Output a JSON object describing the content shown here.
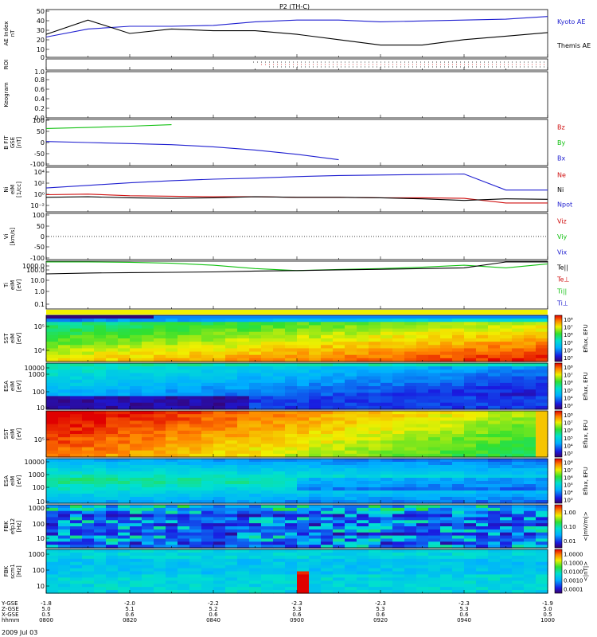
{
  "title": "P2 (TH-C)",
  "date_label": "2009 Jul 03",
  "colors": {
    "blue": "#1f1fd0",
    "red": "#d01010",
    "green": "#10c010",
    "black": "#000000"
  },
  "panels": [
    {
      "id": "ae",
      "ylabel": [
        "AE Index",
        "nT"
      ],
      "ticks": [
        "0",
        "10",
        "20",
        "30",
        "40",
        "50"
      ],
      "legend": [
        {
          "text": "Kyoto AE",
          "color": "#1f1fd0"
        },
        {
          "text": "Themis AE",
          "color": "#000000"
        }
      ]
    },
    {
      "id": "roi",
      "ylabel": [
        "ROI"
      ],
      "ticks": [],
      "legend": []
    },
    {
      "id": "keo",
      "ylabel": [
        "Keogram"
      ],
      "ticks": [
        "0.0",
        "0.2",
        "0.4",
        "0.6",
        "0.8",
        "1.0"
      ],
      "legend": []
    },
    {
      "id": "bfit",
      "ylabel": [
        "B FIT",
        "GSE",
        "[nT]"
      ],
      "ticks": [
        "-100",
        "-50",
        "0",
        "50",
        "100"
      ],
      "legend": [
        {
          "text": "Bz",
          "color": "#d01010"
        },
        {
          "text": "By",
          "color": "#10c010"
        },
        {
          "text": "Bx",
          "color": "#1f1fd0"
        }
      ]
    },
    {
      "id": "ni",
      "ylabel": [
        "Ni",
        "eiM",
        "[1/cc]"
      ],
      "ticks": [
        "10⁻²",
        "10⁰",
        "10²",
        "10⁴"
      ],
      "legend": [
        {
          "text": "Ne",
          "color": "#d01010"
        },
        {
          "text": "Ni",
          "color": "#000000"
        },
        {
          "text": "Npot",
          "color": "#1f1fd0"
        }
      ]
    },
    {
      "id": "vi",
      "ylabel": [
        "Vi",
        "[km/s]"
      ],
      "ticks": [
        "-100",
        "-50",
        "0",
        "50",
        "100"
      ],
      "legend": [
        {
          "text": "Viz",
          "color": "#d01010"
        },
        {
          "text": "Viy",
          "color": "#10c010"
        },
        {
          "text": "Vix",
          "color": "#1f1fd0"
        }
      ]
    },
    {
      "id": "ti",
      "ylabel": [
        "Ti",
        "eiM",
        "[eV]"
      ],
      "ticks": [
        "0.1",
        "1.0",
        "10.0",
        "100.0",
        "1000.0"
      ],
      "legend": [
        {
          "text": "Te||",
          "color": "#000000"
        },
        {
          "text": "Te⊥",
          "color": "#d01010"
        },
        {
          "text": "Ti||",
          "color": "#10c010"
        },
        {
          "text": "Ti⊥",
          "color": "#1f1fd0"
        }
      ]
    },
    {
      "id": "sst_e",
      "ylabel": [
        "SST",
        "eiM",
        "[eV]"
      ],
      "ticks": [
        "10⁴",
        "10⁵"
      ],
      "cbar": [
        "10³",
        "10⁴",
        "10⁵",
        "10⁶",
        "10⁷",
        "10⁸"
      ],
      "cblabel": "Eflux, EFU"
    },
    {
      "id": "esa_e",
      "ylabel": [
        "ESA",
        "eiM",
        "[eV]"
      ],
      "ticks": [
        "10",
        "100",
        "1000",
        "10000"
      ],
      "cbar": [
        "10³",
        "10⁴",
        "10⁵",
        "10⁶",
        "10⁷",
        "10⁸"
      ],
      "cblabel": "Eflux, EFU"
    },
    {
      "id": "sst_i",
      "ylabel": [
        "SST",
        "eiM",
        "[eV]"
      ],
      "ticks": [
        "10⁵"
      ],
      "cbar": [
        "10³",
        "10⁴",
        "10⁵",
        "10⁶",
        "10⁷",
        "10⁸"
      ],
      "cblabel": "Eflux, EFU"
    },
    {
      "id": "esa_i",
      "ylabel": [
        "ESA",
        "eiM",
        "[eV]"
      ],
      "ticks": [
        "10",
        "100",
        "1000",
        "10000"
      ],
      "cbar": [
        "10³",
        "10⁴",
        "10⁵",
        "10⁶",
        "10⁷",
        "10⁸"
      ],
      "cblabel": "Eflux, EFU"
    },
    {
      "id": "fbk_e",
      "ylabel": [
        "FBK",
        "efp12",
        "[Hz]"
      ],
      "ticks": [
        "10",
        "100",
        "1000"
      ],
      "cbar": [
        "0.01",
        "0.10",
        "1.00"
      ],
      "cblabel": "<|mV/m|>"
    },
    {
      "id": "fbk_b",
      "ylabel": [
        "FBK",
        "scm1",
        "[Hz]"
      ],
      "ticks": [
        "10",
        "100",
        "1000"
      ],
      "cbar": [
        "0.0001",
        "0.0010",
        "0.0100",
        "0.1000",
        "1.0000"
      ],
      "cblabel": "<|nT|>"
    }
  ],
  "x_axis": {
    "row_labels": [
      "Y-GSE",
      "Z-GSE",
      "X-GSE",
      "hhmm"
    ],
    "ticks": [
      {
        "y": "-1.8",
        "z": "5.0",
        "x": "0.5",
        "t": "0800"
      },
      {
        "y": "-2.0",
        "z": "5.1",
        "x": "0.6",
        "t": "0820"
      },
      {
        "y": "-2.2",
        "z": "5.2",
        "x": "0.6",
        "t": "0840"
      },
      {
        "y": "-2.3",
        "z": "5.3",
        "x": "0.6",
        "t": "0900"
      },
      {
        "y": "-2.3",
        "z": "5.3",
        "x": "0.6",
        "t": "0920"
      },
      {
        "y": "-2.3",
        "z": "5.3",
        "x": "0.6",
        "t": "0940"
      },
      {
        "y": "-1.9",
        "z": "5.0",
        "x": "0.5",
        "t": "1000"
      }
    ]
  },
  "chart_data": {
    "type": "line",
    "title": "P2 (TH-C)",
    "x_range": [
      "08:00",
      "10:00"
    ],
    "x": [
      "08:00",
      "08:10",
      "08:20",
      "08:30",
      "08:40",
      "08:50",
      "09:00",
      "09:10",
      "09:20",
      "09:30",
      "09:40",
      "09:50",
      "10:00"
    ],
    "panels": [
      {
        "name": "AE Index",
        "ylim": [
          0,
          50
        ],
        "scale": "linear",
        "series": [
          {
            "name": "Kyoto AE",
            "color": "#1f1fd0",
            "values": [
              21,
              30,
              33,
              33,
              34,
              38,
              40,
              40,
              38,
              39,
              40,
              41,
              44
            ]
          },
          {
            "name": "Themis AE",
            "color": "#000000",
            "values": [
              24,
              40,
              25,
              30,
              28,
              28,
              24,
              18,
              12,
              12,
              18,
              22,
              26
            ]
          }
        ]
      },
      {
        "name": "B FIT GSE",
        "ylim": [
          -100,
          100
        ],
        "scale": "linear",
        "series": [
          {
            "name": "By",
            "color": "#10c010",
            "values": [
              65,
              70,
              76,
              83,
              null,
              null,
              null,
              null,
              null,
              null,
              null,
              null,
              null
            ]
          },
          {
            "name": "Bx",
            "color": "#1f1fd0",
            "values": [
              5,
              0,
              -5,
              -10,
              -20,
              -35,
              -55,
              -80,
              null,
              null,
              null,
              null,
              null
            ]
          }
        ]
      },
      {
        "name": "Ni",
        "ylim": [
          -3,
          5
        ],
        "scale": "log10",
        "series": [
          {
            "name": "Npot",
            "color": "#1f1fd0",
            "values": [
              1.3,
              1.8,
              2.3,
              2.7,
              3.0,
              3.2,
              3.5,
              3.7,
              3.8,
              3.9,
              4.0,
              0.9,
              0.9
            ]
          },
          {
            "name": "Ne",
            "color": "#d01010",
            "values": [
              0.0,
              0.1,
              -0.2,
              -0.3,
              -0.4,
              -0.4,
              -0.5,
              -0.5,
              -0.6,
              -0.6,
              -0.7,
              -1.6,
              -1.6
            ]
          },
          {
            "name": "Ni",
            "color": "#000000",
            "values": [
              -0.5,
              -0.4,
              -0.6,
              -0.7,
              -0.6,
              -0.4,
              -0.5,
              -0.5,
              -0.6,
              -0.8,
              -1.1,
              -0.8,
              -0.9
            ]
          }
        ]
      },
      {
        "name": "Ti",
        "ylim": [
          0.1,
          1000
        ],
        "scale": "log10",
        "series": [
          {
            "name": "Ti||",
            "color": "#10c010",
            "values": [
              1500,
              1200,
              1100,
              900,
              600,
              300,
              200,
              250,
              300,
              400,
              600,
              350,
              800
            ]
          },
          {
            "name": "Te||",
            "color": "#000000",
            "values": [
              100,
              120,
              130,
              140,
              150,
              180,
              200,
              230,
              260,
              300,
              350,
              1500,
              1500
            ]
          }
        ]
      }
    ]
  }
}
